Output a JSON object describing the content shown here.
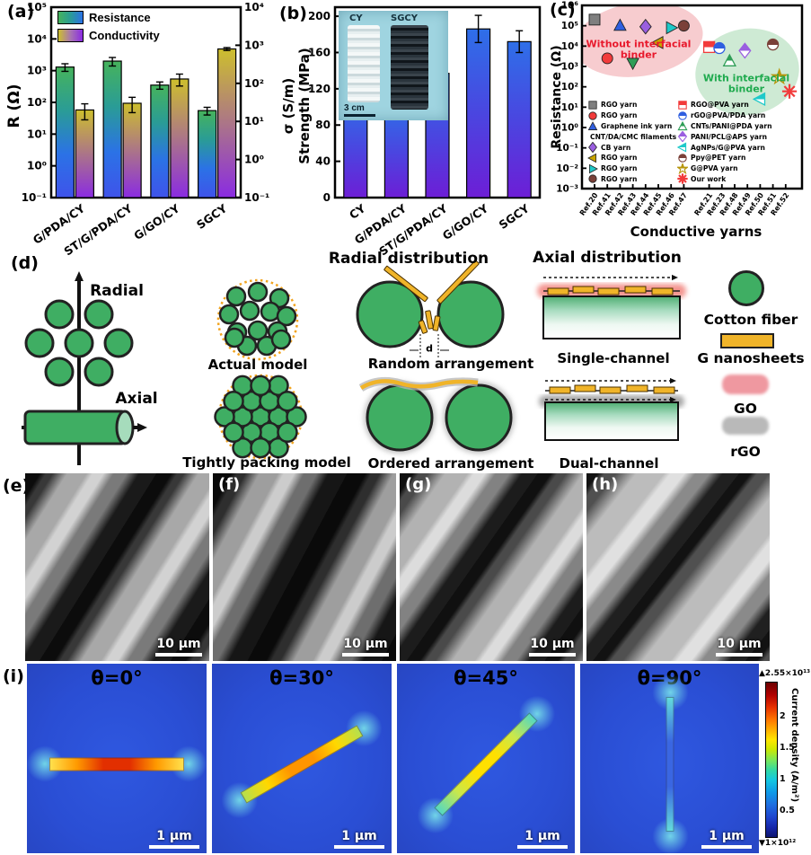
{
  "chart_data": [
    {
      "panel_label": "(a)",
      "type": "bar",
      "yscale": "log",
      "categories": [
        "G/PDA/CY",
        "ST/G/PDA/CY",
        "G/GO/CY",
        "SGCY"
      ],
      "series": [
        {
          "name": "Resistance",
          "axis": "left",
          "unit": "Ω",
          "values": [
            1300,
            2000,
            350,
            55
          ],
          "errors": [
            350,
            600,
            90,
            15
          ],
          "gradient": [
            "#46b35c",
            "#2a9c96",
            "#2b72e6",
            "#3f53ea"
          ]
        },
        {
          "name": "Conductivity",
          "axis": "right",
          "unit": "S/m",
          "values": [
            20,
            30,
            130,
            800
          ],
          "errors": [
            9,
            13,
            45,
            70
          ],
          "gradient": [
            "#cdbf2d",
            "#8a2be2"
          ]
        }
      ],
      "ylabel_left": "R (Ω)",
      "ylabel_right": "σ (S/m)",
      "ylim_left": [
        0.1,
        100000
      ],
      "ylim_right": [
        0.1,
        10000
      ],
      "yticks_left": [
        "10⁵",
        "10⁴",
        "10³",
        "10²",
        "10¹",
        "10⁰",
        "10⁻¹"
      ],
      "yticks_right": [
        "10⁴",
        "10³",
        "10²",
        "10¹",
        "10⁰",
        "10⁻¹"
      ]
    },
    {
      "panel_label": "(b)",
      "type": "bar",
      "yscale": "linear",
      "categories": [
        "CY",
        "G/PDA/CY",
        "ST/G/PDA/CY",
        "G/GO/CY",
        "SGCY"
      ],
      "values": [
        108,
        101,
        137,
        186,
        172
      ],
      "errors": [
        7,
        11,
        9,
        15,
        12
      ],
      "ylabel": "Strength (MPa)",
      "ylim": [
        0,
        210
      ],
      "yticks": [
        0,
        40,
        80,
        120,
        160,
        200
      ],
      "bar_gradient": [
        "#2e6fe8",
        "#4a46e0",
        "#6d1ed6"
      ],
      "inset": {
        "labels": [
          "CY",
          "SGCY"
        ],
        "scalebar": "3 cm"
      }
    },
    {
      "panel_label": "(c)",
      "type": "scatter",
      "yscale": "log",
      "ylabel": "Resistance (Ω)",
      "xlabel": "Conductive yarns",
      "ylim": [
        0.001,
        1000000
      ],
      "yticks": [
        "10⁶",
        "10⁵",
        "10⁴",
        "10³",
        "10²",
        "10¹",
        "10⁰",
        "10⁻¹",
        "10⁻²",
        "10⁻³"
      ],
      "xticks": [
        "Ref.20",
        "Ref.41",
        "Ref.42",
        "Ref.43",
        "Ref.44",
        "Ref.45",
        "Ref.46",
        "Ref.47",
        "Ref.21",
        "Ref.23",
        "Ref.48",
        "Ref.49",
        "Ref.50",
        "Ref.51",
        "Ref.52"
      ],
      "groups": [
        {
          "label": "Without interfacial binder",
          "fill": "#f5bfc3",
          "text_color": "#e8192c"
        },
        {
          "label": "With interfacial binder",
          "fill": "#c5e6cd",
          "text_color": "#1faa4e"
        }
      ],
      "points": [
        {
          "ref": "Ref.20",
          "xi": 0,
          "y": 200000,
          "marker": "square",
          "color": "#7f7f7f",
          "fill": "solid",
          "label": "RGO yarn"
        },
        {
          "ref": "Ref.41",
          "xi": 1,
          "y": 2500,
          "marker": "circle",
          "color": "#f23b3b",
          "fill": "solid",
          "label": "RGO yarn"
        },
        {
          "ref": "Ref.42",
          "xi": 2,
          "y": 100000,
          "marker": "triangle-up",
          "color": "#2f5fe0",
          "fill": "solid",
          "label": "Graphene ink yarn"
        },
        {
          "ref": "Ref.43",
          "xi": 3,
          "y": 1500,
          "marker": "triangle-down",
          "color": "#2f9e57",
          "fill": "solid",
          "label": "CNT/DA/CMC filaments"
        },
        {
          "ref": "Ref.44",
          "xi": 4,
          "y": 90000,
          "marker": "diamond",
          "color": "#9a5fe0",
          "fill": "solid",
          "label": "CB yarn"
        },
        {
          "ref": "Ref.45",
          "xi": 5,
          "y": 15000,
          "marker": "triangle-left",
          "color": "#c8a400",
          "fill": "solid",
          "label": "RGO yarn"
        },
        {
          "ref": "Ref.46",
          "xi": 6,
          "y": 80000,
          "marker": "triangle-right",
          "color": "#1fc9c9",
          "fill": "solid",
          "label": "RGO yarn"
        },
        {
          "ref": "Ref.47",
          "xi": 7,
          "y": 100000,
          "marker": "circle",
          "color": "#7a4038",
          "fill": "solid",
          "label": "RGO yarn"
        },
        {
          "ref": "Ref.21",
          "xi": 8,
          "y": 9000,
          "marker": "square",
          "color": "#f23b3b",
          "fill": "half",
          "label": "RGO@PVA yarn"
        },
        {
          "ref": "Ref.23",
          "xi": 8.8,
          "y": 8000,
          "marker": "circle",
          "color": "#2f5fe0",
          "fill": "half",
          "label": "rGO@PVA/PDA yarn"
        },
        {
          "ref": "Ref.48",
          "xi": 9.6,
          "y": 1800,
          "marker": "triangle-up",
          "color": "#2f9e57",
          "fill": "half",
          "label": "CNTs/PANI@PDA yarn"
        },
        {
          "ref": "Ref.49",
          "xi": 10.8,
          "y": 6000,
          "marker": "diamond",
          "color": "#9a5fe0",
          "fill": "half",
          "label": "PANI/PCL@APS yarn"
        },
        {
          "ref": "Ref.50",
          "xi": 12,
          "y": 25,
          "marker": "triangle-left",
          "color": "#1fc9c9",
          "fill": "half",
          "label": "AgNPs/G@PVA yarn"
        },
        {
          "ref": "Ref.51",
          "xi": 13,
          "y": 12000,
          "marker": "circle",
          "color": "#7a4038",
          "fill": "half",
          "label": "Ppy@PET yarn"
        },
        {
          "ref": "Ref.51",
          "xi": 13.5,
          "y": 300,
          "marker": "star",
          "color": "#b8960c",
          "fill": "half",
          "label": "G@PVA yarn"
        },
        {
          "ref": "Ref.52",
          "xi": 14.3,
          "y": 60,
          "marker": "snowflake",
          "color": "#f23b3b",
          "fill": "solid",
          "label": "Our work"
        }
      ]
    }
  ],
  "panel_d": {
    "panel_label": "(d)",
    "axis_labels": {
      "radial": "Radial",
      "axial": "Axial"
    },
    "headings": {
      "radial": "Radial distribution",
      "axial": "Axial distribution"
    },
    "models": {
      "actual": "Actual model",
      "tight": "Tightly packing model",
      "random": "Random arrangement",
      "ordered": "Ordered arrangement",
      "single": "Single-channel",
      "dual": "Dual-channel"
    },
    "gap_label": "d",
    "colors": {
      "fiber": "#3fae63",
      "nanosheet": "#f0b429",
      "go": "#ef98a0",
      "rgo": "#b9b9b9"
    },
    "legend": [
      {
        "label": "Cotton fiber"
      },
      {
        "label": "G nanosheets"
      },
      {
        "label": "GO"
      },
      {
        "label": "rGO"
      }
    ]
  },
  "sem": {
    "panels": [
      {
        "label": "(e)",
        "scalebar": "10 μm"
      },
      {
        "label": "(f)",
        "scalebar": "10 μm"
      },
      {
        "label": "(g)",
        "scalebar": "10 μm"
      },
      {
        "label": "(h)",
        "scalebar": "10 μm"
      }
    ]
  },
  "sim": {
    "panel_label": "(i)",
    "panels": [
      {
        "title": "θ=0°",
        "angle_deg": 0,
        "scalebar": "1 μm",
        "thickness": 15,
        "bar_gradient": [
          "#ffe14d",
          "#ff9a00",
          "#e22f00",
          "#e22f00",
          "#ff9a00",
          "#ffe14d"
        ]
      },
      {
        "title": "θ=30°",
        "angle_deg": 30,
        "scalebar": "1 μm",
        "thickness": 14,
        "bar_gradient": [
          "#b6e04d",
          "#ffd800",
          "#ff9500",
          "#ff9500",
          "#ffd800",
          "#b6e04d"
        ]
      },
      {
        "title": "θ=45°",
        "angle_deg": 45,
        "scalebar": "1 μm",
        "thickness": 13,
        "bar_gradient": [
          "#55d8c0",
          "#c8e84d",
          "#ffe000",
          "#ffe000",
          "#c8e84d",
          "#55d8c0"
        ]
      },
      {
        "title": "θ=90°",
        "angle_deg": 90,
        "scalebar": "1 μm",
        "thickness": 9,
        "bar_gradient": [
          "#63dcdc",
          "#3a66e2",
          "#3a66e2",
          "#63dcdc"
        ]
      }
    ],
    "colorbar": {
      "max_label": "▲2.55×10¹³",
      "min_label": "▼1×10¹²",
      "ticks": [
        2,
        1.5,
        1,
        0.5
      ],
      "range": [
        0.1,
        2.55
      ],
      "label": "Current density (A/m²)"
    }
  }
}
